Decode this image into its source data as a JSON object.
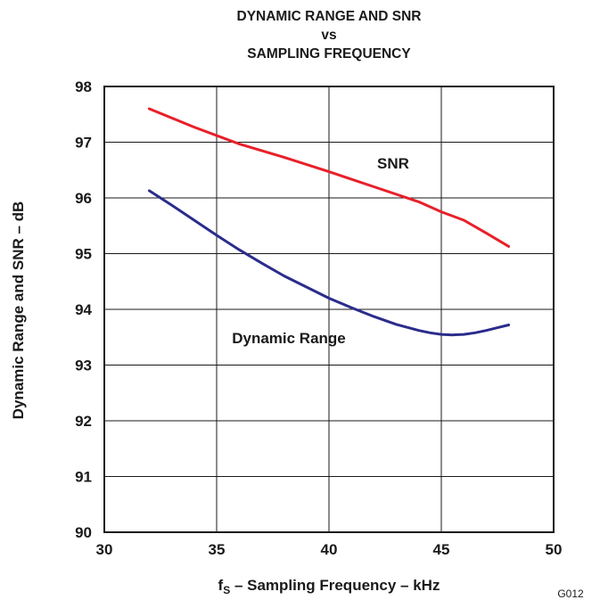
{
  "chart_data": {
    "type": "line",
    "title": [
      "DYNAMIC RANGE AND SNR",
      "vs",
      "SAMPLING FREQUENCY"
    ],
    "xlabel": {
      "main": "f",
      "sub": "S",
      "rest": " – Sampling Frequency – kHz"
    },
    "ylabel": "Dynamic Range and SNR – dB",
    "xlim": [
      30,
      50
    ],
    "ylim": [
      90,
      98
    ],
    "xticks": [
      30,
      35,
      40,
      45,
      50
    ],
    "yticks": [
      90,
      91,
      92,
      93,
      94,
      95,
      96,
      97,
      98
    ],
    "grid": true,
    "series": [
      {
        "name": "SNR",
        "color": "#e8202a",
        "x": [
          32,
          34,
          36,
          38,
          40,
          42,
          44,
          45,
          46,
          47,
          48
        ],
        "y": [
          97.6,
          97.27,
          96.97,
          96.73,
          96.47,
          96.2,
          95.93,
          95.75,
          95.6,
          95.37,
          95.13
        ]
      },
      {
        "name": "Dynamic Range",
        "color": "#2a2c8c",
        "x": [
          32,
          33,
          34,
          35,
          36,
          37,
          38,
          39,
          40,
          41,
          42,
          43,
          44,
          44.5,
          45,
          45.5,
          46,
          46.5,
          47,
          47.5,
          48
        ],
        "y": [
          96.13,
          95.87,
          95.6,
          95.33,
          95.07,
          94.83,
          94.6,
          94.4,
          94.2,
          94.03,
          93.87,
          93.73,
          93.62,
          93.58,
          93.55,
          93.54,
          93.55,
          93.58,
          93.62,
          93.67,
          93.72
        ]
      }
    ],
    "annotations": [
      "SNR",
      "Dynamic Range"
    ],
    "figure_code": "G012"
  }
}
